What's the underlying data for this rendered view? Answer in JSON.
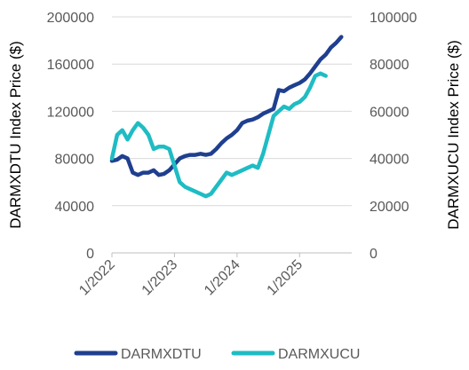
{
  "chart_data": {
    "type": "line",
    "xlabel": "",
    "x_ticks": [
      "1/2022",
      "1/2023",
      "1/2024",
      "1/2025"
    ],
    "x_range": [
      "2022-01",
      "2025-11"
    ],
    "left_axis": {
      "label": "DARMXDTU Index Price ($)",
      "range": [
        0,
        200000
      ],
      "ticks": [
        "0",
        "40000",
        "80000",
        "120000",
        "160000",
        "200000"
      ]
    },
    "right_axis": {
      "label": "DARMXUCU Index Price ($)",
      "range": [
        0,
        100000
      ],
      "ticks": [
        "0",
        "20000",
        "40000",
        "60000",
        "80000",
        "100000"
      ]
    },
    "grid": "horizontal",
    "legend_position": "bottom",
    "series": [
      {
        "name": "DARMXDTU",
        "axis": "left",
        "color": "#1f3f8f",
        "points": [
          [
            "2022-01",
            78000
          ],
          [
            "2022-02",
            79000
          ],
          [
            "2022-03",
            82000
          ],
          [
            "2022-04",
            80000
          ],
          [
            "2022-05",
            68000
          ],
          [
            "2022-06",
            66000
          ],
          [
            "2022-07",
            68000
          ],
          [
            "2022-08",
            68000
          ],
          [
            "2022-09",
            70000
          ],
          [
            "2022-10",
            66000
          ],
          [
            "2022-11",
            67000
          ],
          [
            "2022-12",
            70000
          ],
          [
            "2023-01",
            75000
          ],
          [
            "2023-02",
            80000
          ],
          [
            "2023-03",
            82000
          ],
          [
            "2023-04",
            83000
          ],
          [
            "2023-05",
            83000
          ],
          [
            "2023-06",
            84000
          ],
          [
            "2023-07",
            83000
          ],
          [
            "2023-08",
            84000
          ],
          [
            "2023-09",
            88000
          ],
          [
            "2023-10",
            93000
          ],
          [
            "2023-11",
            97000
          ],
          [
            "2023-12",
            100000
          ],
          [
            "2024-01",
            104000
          ],
          [
            "2024-02",
            110000
          ],
          [
            "2024-03",
            112000
          ],
          [
            "2024-04",
            113000
          ],
          [
            "2024-05",
            115000
          ],
          [
            "2024-06",
            118000
          ],
          [
            "2024-07",
            120000
          ],
          [
            "2024-08",
            122000
          ],
          [
            "2024-09",
            138000
          ],
          [
            "2024-10",
            137000
          ],
          [
            "2024-11",
            140000
          ],
          [
            "2024-12",
            142000
          ],
          [
            "2025-01",
            144000
          ],
          [
            "2025-02",
            147000
          ],
          [
            "2025-03",
            152000
          ],
          [
            "2025-04",
            158000
          ],
          [
            "2025-05",
            164000
          ],
          [
            "2025-06",
            168000
          ],
          [
            "2025-07",
            174000
          ],
          [
            "2025-08",
            178000
          ],
          [
            "2025-09",
            183000
          ]
        ]
      },
      {
        "name": "DARMXUCU",
        "axis": "right",
        "color": "#1fbcc4",
        "points": [
          [
            "2022-01",
            40000
          ],
          [
            "2022-02",
            50000
          ],
          [
            "2022-03",
            52000
          ],
          [
            "2022-04",
            48000
          ],
          [
            "2022-05",
            52000
          ],
          [
            "2022-06",
            55000
          ],
          [
            "2022-07",
            53000
          ],
          [
            "2022-08",
            50000
          ],
          [
            "2022-09",
            44000
          ],
          [
            "2022-10",
            45000
          ],
          [
            "2022-11",
            45000
          ],
          [
            "2022-12",
            44000
          ],
          [
            "2023-01",
            37000
          ],
          [
            "2023-02",
            30000
          ],
          [
            "2023-03",
            28000
          ],
          [
            "2023-04",
            27000
          ],
          [
            "2023-05",
            26000
          ],
          [
            "2023-06",
            25000
          ],
          [
            "2023-07",
            24000
          ],
          [
            "2023-08",
            25000
          ],
          [
            "2023-09",
            28000
          ],
          [
            "2023-10",
            31000
          ],
          [
            "2023-11",
            34000
          ],
          [
            "2023-12",
            33000
          ],
          [
            "2024-01",
            34000
          ],
          [
            "2024-02",
            35000
          ],
          [
            "2024-03",
            36000
          ],
          [
            "2024-04",
            37000
          ],
          [
            "2024-05",
            36000
          ],
          [
            "2024-06",
            42000
          ],
          [
            "2024-07",
            50000
          ],
          [
            "2024-08",
            58000
          ],
          [
            "2024-09",
            60000
          ],
          [
            "2024-10",
            62000
          ],
          [
            "2024-11",
            61000
          ],
          [
            "2024-12",
            63000
          ],
          [
            "2025-01",
            64000
          ],
          [
            "2025-02",
            66000
          ],
          [
            "2025-03",
            70000
          ],
          [
            "2025-04",
            75000
          ],
          [
            "2025-05",
            76000
          ],
          [
            "2025-06",
            75000
          ]
        ]
      }
    ]
  }
}
